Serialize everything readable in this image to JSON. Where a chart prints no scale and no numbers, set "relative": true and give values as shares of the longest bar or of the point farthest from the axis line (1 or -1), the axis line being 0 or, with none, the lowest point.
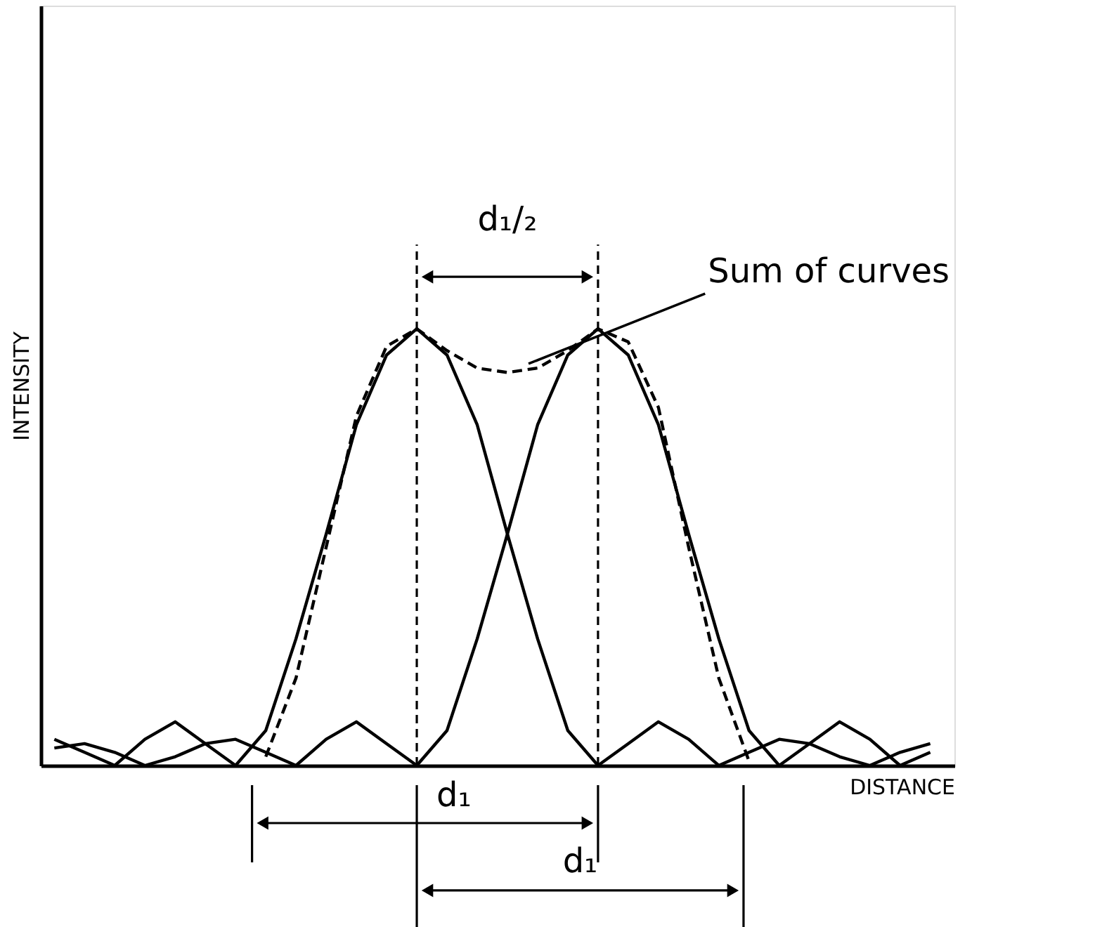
{
  "chart_data": {
    "type": "line",
    "relative": true,
    "xlabel": "DISTANCE",
    "ylabel": "INTENSITY",
    "categories": [
      null,
      null,
      null,
      null,
      null,
      null,
      null,
      null,
      null,
      null,
      null,
      null,
      null,
      null,
      null,
      null,
      null,
      null,
      null,
      null,
      null,
      null,
      null,
      null,
      null,
      null,
      null,
      null,
      null,
      null
    ],
    "series": [
      {
        "color": "#000000",
        "line_style": "solid",
        "values": [
          0.06,
          0.03,
          0,
          0.06,
          0.1,
          0.05,
          0,
          0.08,
          0.29,
          0.53,
          0.78,
          0.94,
          1,
          0.94,
          0.78,
          0.53,
          0.29,
          0.08,
          0,
          0.05,
          0.1,
          0.06,
          0,
          0.03,
          0.06,
          0.05,
          0.02,
          0,
          0.03,
          0.05
        ]
      },
      {
        "color": "#000000",
        "line_style": "solid",
        "values": [
          0.04,
          0.05,
          0.03,
          0,
          0.02,
          0.05,
          0.06,
          0.03,
          0,
          0.06,
          0.1,
          0.05,
          0,
          0.08,
          0.29,
          0.53,
          0.78,
          0.94,
          1,
          0.94,
          0.78,
          0.53,
          0.29,
          0.08,
          0,
          0.05,
          0.1,
          0.06,
          0,
          0.03
        ]
      },
      {
        "name": "Sum of curves",
        "color": "#000000",
        "line_style": "dashed",
        "values": [
          null,
          null,
          null,
          null,
          null,
          null,
          null,
          0.02,
          0.2,
          0.5,
          0.8,
          0.96,
          1,
          0.95,
          0.91,
          0.9,
          0.91,
          0.95,
          1,
          0.97,
          0.82,
          0.5,
          0.2,
          0.01,
          null,
          null,
          null,
          null,
          null,
          null
        ]
      }
    ],
    "annotations": [
      "d₁/₂",
      "d₁",
      "d₁"
    ],
    "grid": false,
    "marker": "none",
    "tick_labels": false
  }
}
